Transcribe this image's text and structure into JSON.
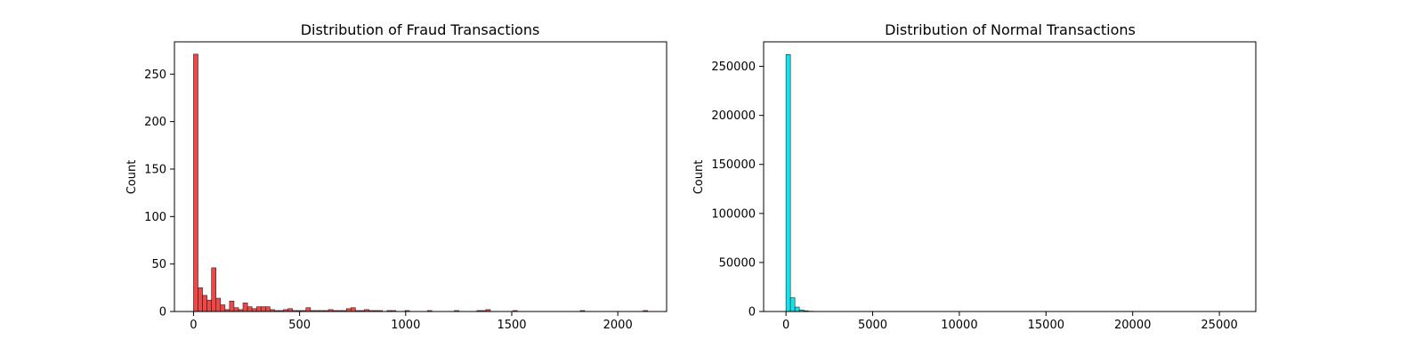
{
  "chart_data": [
    {
      "type": "bar",
      "title": "Distribution of Fraud Transactions",
      "xlabel": "",
      "ylabel": "Count",
      "xlim": [
        -90,
        2230
      ],
      "ylim": [
        0,
        284
      ],
      "xticks": [
        0,
        500,
        1000,
        1500,
        2000
      ],
      "yticks": [
        0,
        50,
        100,
        150,
        200,
        250
      ],
      "bin_width": 21.2,
      "color": "#f03c3c",
      "x": [
        0,
        21.2,
        42.4,
        63.6,
        84.8,
        106,
        127.2,
        148.4,
        169.6,
        190.8,
        212,
        233.2,
        254.4,
        275.6,
        296.8,
        318,
        339.2,
        360.4,
        381.6,
        402.8,
        424,
        445.2,
        466.4,
        487.6,
        508.8,
        530,
        551.2,
        572.4,
        593.6,
        614.8,
        636,
        657.2,
        678.4,
        699.6,
        720.8,
        742,
        763.2,
        784.4,
        805.6,
        826.8,
        848,
        869.2,
        911.6,
        932.8,
        996.4,
        1102.4,
        1229.6,
        1335.6,
        1356.8,
        1378,
        1505.2,
        1822.8,
        2119.6
      ],
      "values": [
        271,
        25,
        17,
        12,
        46,
        14,
        7,
        2,
        11,
        4,
        2,
        9,
        5,
        3,
        5,
        5,
        5,
        2,
        1,
        1,
        2,
        3,
        1,
        1,
        1,
        4,
        1,
        1,
        1,
        1,
        2,
        1,
        1,
        1,
        3,
        4,
        1,
        1,
        2,
        1,
        1,
        1,
        1,
        1,
        1,
        1,
        1,
        1,
        1,
        2,
        1,
        1,
        1
      ]
    },
    {
      "type": "bar",
      "title": "Distribution of Normal Transactions",
      "xlabel": "",
      "ylabel": "Count",
      "xlim": [
        -1290,
        27100
      ],
      "ylim": [
        0,
        275000
      ],
      "xticks": [
        0,
        5000,
        10000,
        15000,
        20000,
        25000
      ],
      "yticks": [
        0,
        50000,
        100000,
        150000,
        200000,
        250000
      ],
      "bin_width": 257,
      "color": "#00e5ee",
      "x": [
        0,
        257,
        514,
        771,
        1028,
        1285,
        1542,
        1799
      ],
      "values": [
        262000,
        14000,
        4500,
        1600,
        800,
        300,
        150,
        80
      ]
    }
  ]
}
